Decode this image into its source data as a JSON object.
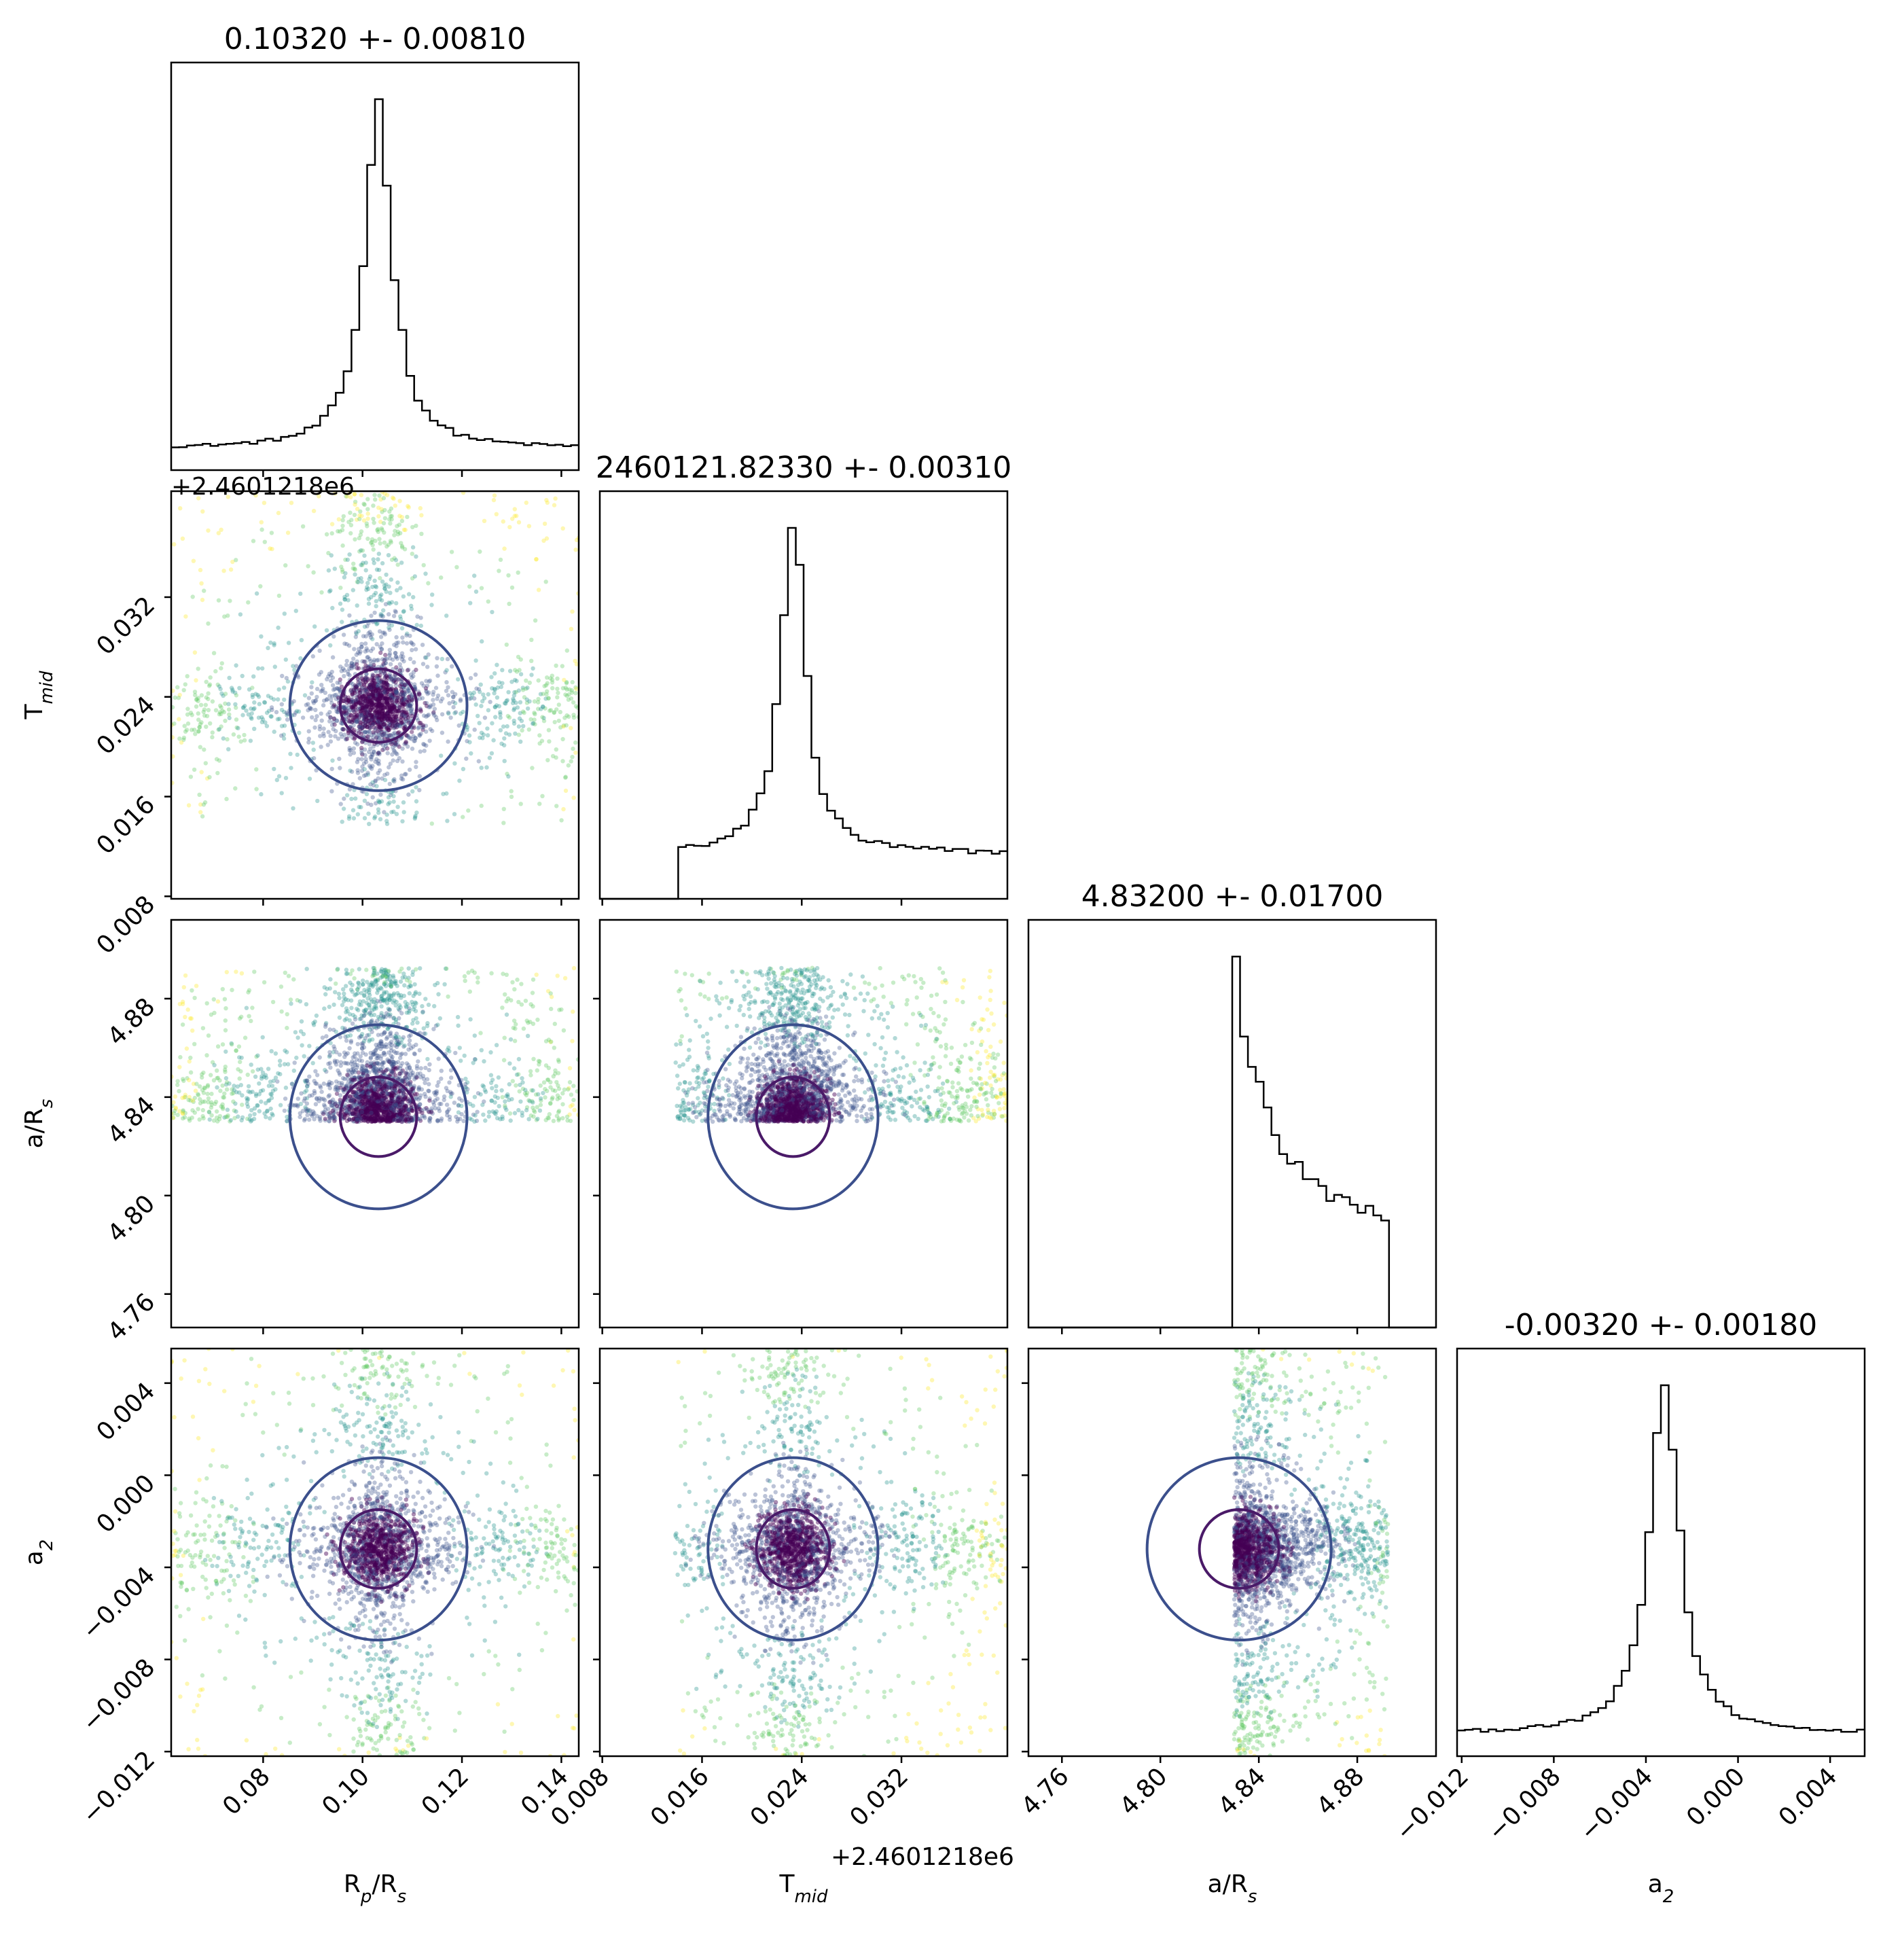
{
  "chart_data": {
    "type": "corner",
    "figure": "corner plot of posterior samples",
    "parameters": [
      {
        "key": "rp",
        "label": "R_p/R_s",
        "label_main": "R",
        "label_sub": "p",
        "label_tail": "/R",
        "label_tail_sub": "s",
        "diag_title": "0.10320 +- 0.00810",
        "range": [
          0.0615,
          0.1435
        ],
        "ticks": [
          0.08,
          0.1,
          0.12,
          0.14
        ],
        "tick_labels": [
          "0.08",
          "0.10",
          "0.12",
          "0.14"
        ],
        "center": 0.1032,
        "sigma": 0.0081
      },
      {
        "key": "tmid",
        "label": "T_mid",
        "label_main": "T",
        "label_sub": "mid",
        "label_tail": "",
        "label_tail_sub": "",
        "diag_title": "2460121.82330 +- 0.00310",
        "offset_text": "+2.4601218e6",
        "range": [
          0.0078,
          0.0405
        ],
        "ticks": [
          0.008,
          0.016,
          0.024,
          0.032
        ],
        "tick_labels": [
          "0.008",
          "0.016",
          "0.024",
          "0.032"
        ],
        "center": 0.0233,
        "sigma": 0.0031
      },
      {
        "key": "ars",
        "label": "a/R_s",
        "label_main": "a/R",
        "label_sub": "s",
        "label_tail": "",
        "label_tail_sub": "",
        "diag_title": "4.83200 +- 0.01700",
        "range": [
          4.7464,
          4.912
        ],
        "ticks": [
          4.76,
          4.8,
          4.84,
          4.88
        ],
        "tick_labels": [
          "4.76",
          "4.80",
          "4.84",
          "4.88"
        ],
        "center": 4.832,
        "sigma": 0.017
      },
      {
        "key": "a2",
        "label": "a_2",
        "label_main": "a",
        "label_sub": "2",
        "label_tail": "",
        "label_tail_sub": "",
        "diag_title": "-0.00320 +- 0.00180",
        "range": [
          -0.0122,
          0.0055
        ],
        "ticks": [
          -0.012,
          -0.008,
          -0.004,
          0.0,
          0.004
        ],
        "tick_labels": [
          "−0.012",
          "−0.008",
          "−0.004",
          "0.000",
          "0.004"
        ],
        "center": -0.0032,
        "sigma": 0.0018
      }
    ],
    "marginal_histograms": {
      "rp": {
        "bins": 52,
        "style": "peaked",
        "peak": 0.1032,
        "width": 0.004,
        "background": 0.06
      },
      "tmid": {
        "bins": 52,
        "style": "peaked",
        "peak": 0.0233,
        "width": 0.0014,
        "background": 0.12,
        "lower_cut": 0.0138
      },
      "ars": {
        "bins": 52,
        "style": "truncated",
        "lower_cut": 4.83,
        "upper_cut": 4.8925,
        "peak_value": 1.0,
        "tail_value": 0.33
      },
      "a2": {
        "bins": 52,
        "style": "peaked",
        "peak": -0.0032,
        "width": 0.0009,
        "background": 0.06
      }
    },
    "scatter_note": "posterior samples colored by density (viridis), with 1- and 2-sigma contours",
    "colormap": [
      "#440154",
      "#3b528b",
      "#21918c",
      "#5ec962",
      "#fde725"
    ],
    "contour_colors": {
      "inner": "#4a1a68",
      "outer": "#3b4f8c",
      "extra": "#f5e02a"
    },
    "histogram_color": "#000000",
    "grid": false
  }
}
